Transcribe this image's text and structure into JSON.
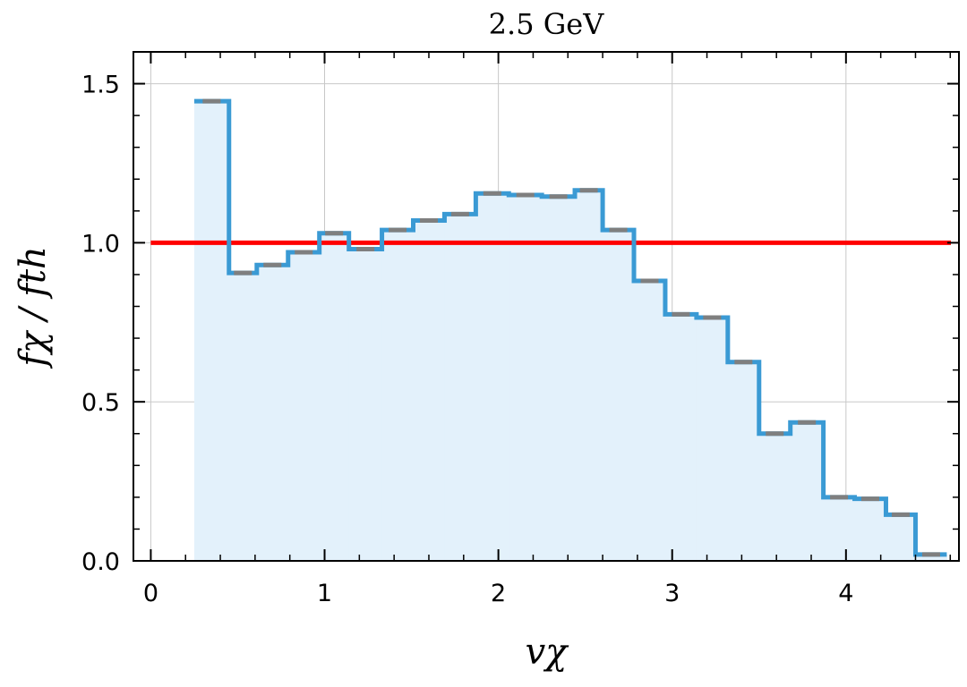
{
  "chart_data": {
    "type": "area",
    "title": "2.5 GeV",
    "xlabel": "vχ",
    "ylabel": "fχ / fth",
    "xlim": [
      -0.1,
      4.65
    ],
    "ylim": [
      0,
      1.6
    ],
    "x_ticks": [
      "0",
      "1",
      "2",
      "3",
      "4"
    ],
    "y_ticks": [
      "0.0",
      "0.5",
      "1.0",
      "1.5"
    ],
    "grid": true,
    "bin_edges": [
      0.25,
      0.45,
      0.61,
      0.79,
      0.97,
      1.14,
      1.33,
      1.51,
      1.69,
      1.87,
      2.06,
      2.25,
      2.44,
      2.6,
      2.78,
      2.96,
      3.14,
      3.32,
      3.5,
      3.68,
      3.87,
      4.05,
      4.23,
      4.4,
      4.58
    ],
    "series": [
      {
        "values": [
          1.445,
          0.905,
          0.93,
          0.97,
          1.03,
          0.98,
          1.04,
          1.07,
          1.09,
          1.155,
          1.15,
          1.145,
          1.165,
          1.04,
          0.88,
          0.775,
          0.765,
          0.625,
          0.4,
          0.435,
          0.2,
          0.195,
          0.145,
          0.02
        ],
        "color": "#3a9ad4",
        "fill_color": "#e3f1fb",
        "marker_color": "#7f7f7f"
      }
    ],
    "reference_line": {
      "y": 1.0,
      "color": "#ff0000"
    }
  }
}
